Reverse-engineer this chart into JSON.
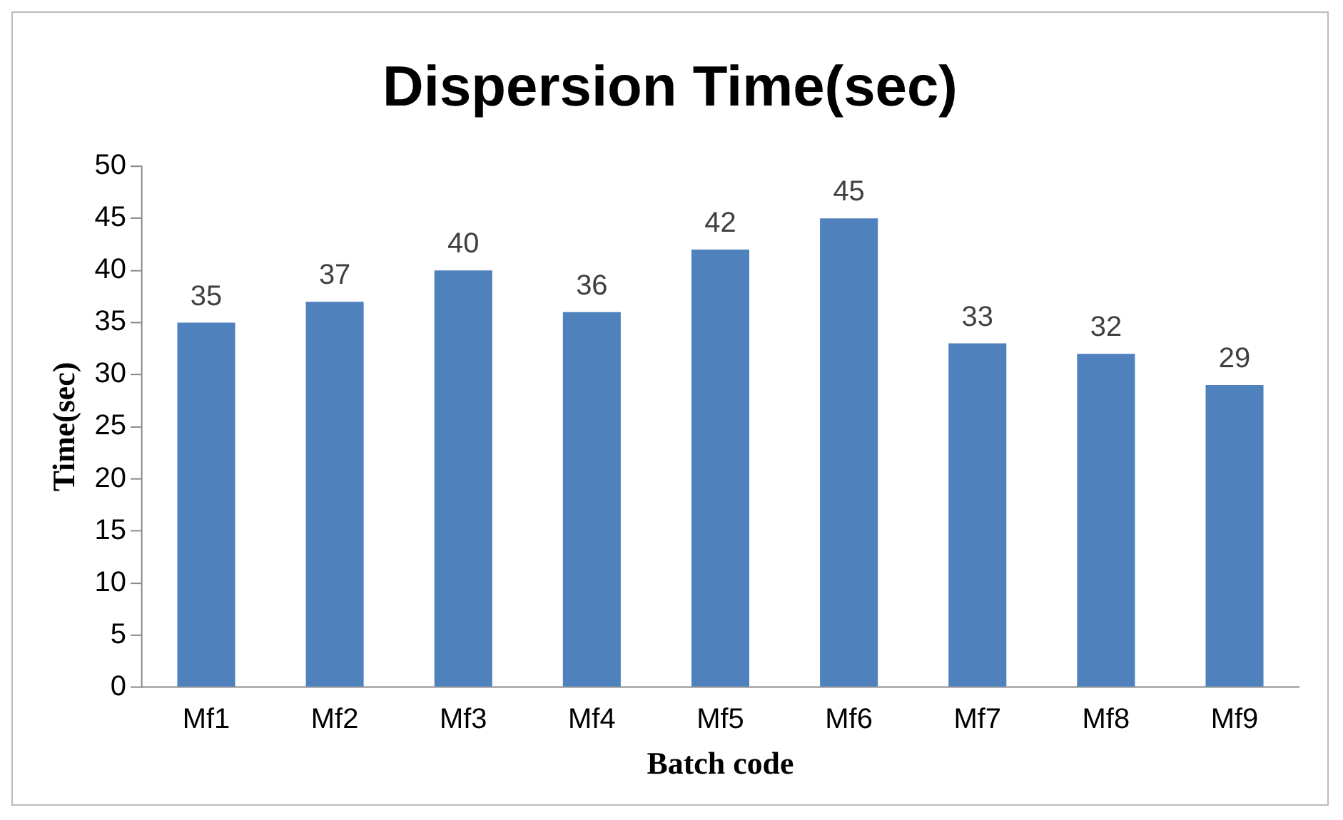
{
  "chart_data": {
    "type": "bar",
    "title": "Dispersion Time(sec)",
    "xlabel": "Batch code",
    "ylabel": "Time(sec)",
    "categories": [
      "Mf1",
      "Mf2",
      "Mf3",
      "Mf4",
      "Mf5",
      "Mf6",
      "Mf7",
      "Mf8",
      "Mf9"
    ],
    "values": [
      35,
      37,
      40,
      36,
      42,
      45,
      33,
      32,
      29
    ],
    "color": "#4f81bd",
    "ylim": [
      0,
      50
    ],
    "yticks": [
      0,
      5,
      10,
      15,
      20,
      25,
      30,
      35,
      40,
      45,
      50
    ],
    "grid": false,
    "legend": false,
    "data_labels": true
  }
}
